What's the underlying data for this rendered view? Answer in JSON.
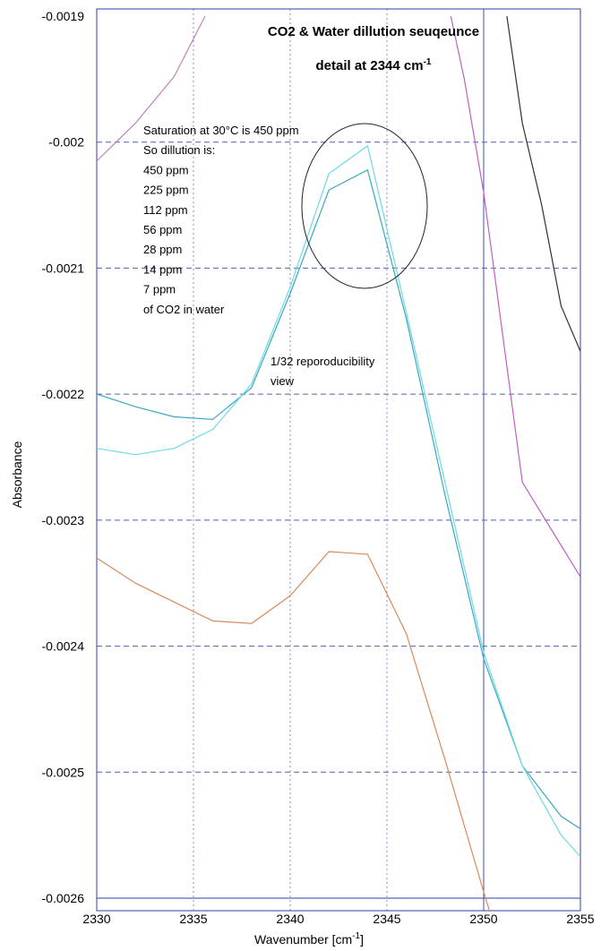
{
  "chart_data": {
    "type": "line",
    "title": "CO2 & Water dillution seuqeunce",
    "subtitle": "detail at 2344 cm",
    "subtitle_sup": "-1",
    "xlabel": "Wavenumber [cm",
    "xlabel_sup": "-1",
    "xlabel_end": "]",
    "ylabel": "Absorbance",
    "xlim": [
      2330,
      2355
    ],
    "ylim": [
      -0.0026,
      -0.0019
    ],
    "x_ticks": [
      "2330",
      "2335",
      "2340",
      "2345",
      "2350",
      "2355"
    ],
    "y_ticks": [
      "-0.0019",
      "-0.002",
      "-0.0021",
      "-0.0022",
      "-0.0023",
      "-0.0024",
      "-0.0025",
      "-0.0026"
    ],
    "grid": true,
    "annotations": {
      "note_lines": [
        "Saturation at 30°C is 450 ppm",
        "So dillution is:",
        "450 ppm",
        "225 ppm",
        "112 ppm",
        "56 ppm",
        "28 ppm",
        "14 ppm",
        "7 ppm",
        "of CO2 in water"
      ],
      "repro_lines": [
        "1/32 reporoducibility",
        " view"
      ]
    },
    "series": [
      {
        "color": "#c080c0",
        "x": [
          2330,
          2332,
          2334,
          2335.6
        ],
        "y": [
          -0.002015,
          -0.001985,
          -0.001948,
          -0.0019
        ]
      },
      {
        "color": "#c060c0",
        "x": [
          2348.3,
          2349,
          2350,
          2352,
          2354,
          2355
        ],
        "y": [
          -0.0019,
          -0.00195,
          -0.00204,
          -0.00227,
          -0.00232,
          -0.002345
        ]
      },
      {
        "color": "#303030",
        "x": [
          2351.2,
          2352,
          2353,
          2354,
          2355
        ],
        "y": [
          -0.0019,
          -0.001985,
          -0.00205,
          -0.00213,
          -0.002166
        ]
      },
      {
        "color": "#3aa8c0",
        "x": [
          2330,
          2332,
          2334,
          2336,
          2338,
          2340,
          2342,
          2344,
          2346,
          2348,
          2350,
          2352,
          2354,
          2355
        ],
        "y": [
          -0.0022,
          -0.00221,
          -0.002218,
          -0.00222,
          -0.002195,
          -0.00212,
          -0.002038,
          -0.002022,
          -0.00214,
          -0.00228,
          -0.00241,
          -0.002495,
          -0.002535,
          -0.002545
        ]
      },
      {
        "color": "#70d8e8",
        "x": [
          2330,
          2332,
          2334,
          2336,
          2338,
          2340,
          2342,
          2344,
          2346,
          2348,
          2350,
          2352,
          2354,
          2355
        ],
        "y": [
          -0.002243,
          -0.002248,
          -0.002243,
          -0.002228,
          -0.002192,
          -0.002115,
          -0.002025,
          -0.002003,
          -0.002135,
          -0.00227,
          -0.002405,
          -0.002495,
          -0.00255,
          -0.002567
        ]
      },
      {
        "color": "#d98a5a",
        "x": [
          2330,
          2332,
          2334,
          2336,
          2338,
          2340,
          2342,
          2344,
          2346,
          2348,
          2350,
          2350.5
        ],
        "y": [
          -0.00233,
          -0.00235,
          -0.002365,
          -0.00238,
          -0.002382,
          -0.00236,
          -0.002325,
          -0.002327,
          -0.00239,
          -0.00249,
          -0.002595,
          -0.00262
        ]
      }
    ]
  }
}
